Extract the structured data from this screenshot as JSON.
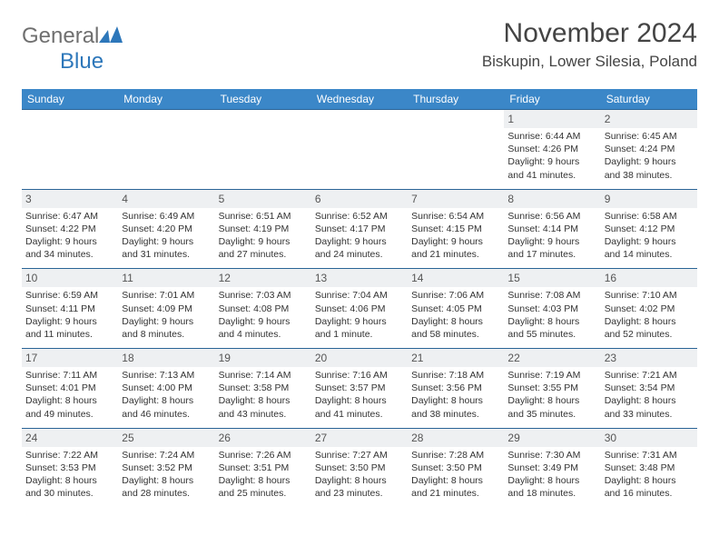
{
  "logo": {
    "word1": "General",
    "word2": "Blue"
  },
  "header": {
    "month_title": "November 2024",
    "location": "Biskupin, Lower Silesia, Poland"
  },
  "colors": {
    "header_bg": "#3b87c8",
    "header_fg": "#ffffff",
    "row_sep": "#2a6496",
    "daynum_bg": "#eef0f2",
    "text": "#333333",
    "logo_gray": "#6f6f6f",
    "logo_blue": "#2d77ba"
  },
  "day_headers": [
    "Sunday",
    "Monday",
    "Tuesday",
    "Wednesday",
    "Thursday",
    "Friday",
    "Saturday"
  ],
  "weeks": [
    [
      null,
      null,
      null,
      null,
      null,
      {
        "n": "1",
        "sunrise": "Sunrise: 6:44 AM",
        "sunset": "Sunset: 4:26 PM",
        "daylight": "Daylight: 9 hours and 41 minutes."
      },
      {
        "n": "2",
        "sunrise": "Sunrise: 6:45 AM",
        "sunset": "Sunset: 4:24 PM",
        "daylight": "Daylight: 9 hours and 38 minutes."
      }
    ],
    [
      {
        "n": "3",
        "sunrise": "Sunrise: 6:47 AM",
        "sunset": "Sunset: 4:22 PM",
        "daylight": "Daylight: 9 hours and 34 minutes."
      },
      {
        "n": "4",
        "sunrise": "Sunrise: 6:49 AM",
        "sunset": "Sunset: 4:20 PM",
        "daylight": "Daylight: 9 hours and 31 minutes."
      },
      {
        "n": "5",
        "sunrise": "Sunrise: 6:51 AM",
        "sunset": "Sunset: 4:19 PM",
        "daylight": "Daylight: 9 hours and 27 minutes."
      },
      {
        "n": "6",
        "sunrise": "Sunrise: 6:52 AM",
        "sunset": "Sunset: 4:17 PM",
        "daylight": "Daylight: 9 hours and 24 minutes."
      },
      {
        "n": "7",
        "sunrise": "Sunrise: 6:54 AM",
        "sunset": "Sunset: 4:15 PM",
        "daylight": "Daylight: 9 hours and 21 minutes."
      },
      {
        "n": "8",
        "sunrise": "Sunrise: 6:56 AM",
        "sunset": "Sunset: 4:14 PM",
        "daylight": "Daylight: 9 hours and 17 minutes."
      },
      {
        "n": "9",
        "sunrise": "Sunrise: 6:58 AM",
        "sunset": "Sunset: 4:12 PM",
        "daylight": "Daylight: 9 hours and 14 minutes."
      }
    ],
    [
      {
        "n": "10",
        "sunrise": "Sunrise: 6:59 AM",
        "sunset": "Sunset: 4:11 PM",
        "daylight": "Daylight: 9 hours and 11 minutes."
      },
      {
        "n": "11",
        "sunrise": "Sunrise: 7:01 AM",
        "sunset": "Sunset: 4:09 PM",
        "daylight": "Daylight: 9 hours and 8 minutes."
      },
      {
        "n": "12",
        "sunrise": "Sunrise: 7:03 AM",
        "sunset": "Sunset: 4:08 PM",
        "daylight": "Daylight: 9 hours and 4 minutes."
      },
      {
        "n": "13",
        "sunrise": "Sunrise: 7:04 AM",
        "sunset": "Sunset: 4:06 PM",
        "daylight": "Daylight: 9 hours and 1 minute."
      },
      {
        "n": "14",
        "sunrise": "Sunrise: 7:06 AM",
        "sunset": "Sunset: 4:05 PM",
        "daylight": "Daylight: 8 hours and 58 minutes."
      },
      {
        "n": "15",
        "sunrise": "Sunrise: 7:08 AM",
        "sunset": "Sunset: 4:03 PM",
        "daylight": "Daylight: 8 hours and 55 minutes."
      },
      {
        "n": "16",
        "sunrise": "Sunrise: 7:10 AM",
        "sunset": "Sunset: 4:02 PM",
        "daylight": "Daylight: 8 hours and 52 minutes."
      }
    ],
    [
      {
        "n": "17",
        "sunrise": "Sunrise: 7:11 AM",
        "sunset": "Sunset: 4:01 PM",
        "daylight": "Daylight: 8 hours and 49 minutes."
      },
      {
        "n": "18",
        "sunrise": "Sunrise: 7:13 AM",
        "sunset": "Sunset: 4:00 PM",
        "daylight": "Daylight: 8 hours and 46 minutes."
      },
      {
        "n": "19",
        "sunrise": "Sunrise: 7:14 AM",
        "sunset": "Sunset: 3:58 PM",
        "daylight": "Daylight: 8 hours and 43 minutes."
      },
      {
        "n": "20",
        "sunrise": "Sunrise: 7:16 AM",
        "sunset": "Sunset: 3:57 PM",
        "daylight": "Daylight: 8 hours and 41 minutes."
      },
      {
        "n": "21",
        "sunrise": "Sunrise: 7:18 AM",
        "sunset": "Sunset: 3:56 PM",
        "daylight": "Daylight: 8 hours and 38 minutes."
      },
      {
        "n": "22",
        "sunrise": "Sunrise: 7:19 AM",
        "sunset": "Sunset: 3:55 PM",
        "daylight": "Daylight: 8 hours and 35 minutes."
      },
      {
        "n": "23",
        "sunrise": "Sunrise: 7:21 AM",
        "sunset": "Sunset: 3:54 PM",
        "daylight": "Daylight: 8 hours and 33 minutes."
      }
    ],
    [
      {
        "n": "24",
        "sunrise": "Sunrise: 7:22 AM",
        "sunset": "Sunset: 3:53 PM",
        "daylight": "Daylight: 8 hours and 30 minutes."
      },
      {
        "n": "25",
        "sunrise": "Sunrise: 7:24 AM",
        "sunset": "Sunset: 3:52 PM",
        "daylight": "Daylight: 8 hours and 28 minutes."
      },
      {
        "n": "26",
        "sunrise": "Sunrise: 7:26 AM",
        "sunset": "Sunset: 3:51 PM",
        "daylight": "Daylight: 8 hours and 25 minutes."
      },
      {
        "n": "27",
        "sunrise": "Sunrise: 7:27 AM",
        "sunset": "Sunset: 3:50 PM",
        "daylight": "Daylight: 8 hours and 23 minutes."
      },
      {
        "n": "28",
        "sunrise": "Sunrise: 7:28 AM",
        "sunset": "Sunset: 3:50 PM",
        "daylight": "Daylight: 8 hours and 21 minutes."
      },
      {
        "n": "29",
        "sunrise": "Sunrise: 7:30 AM",
        "sunset": "Sunset: 3:49 PM",
        "daylight": "Daylight: 8 hours and 18 minutes."
      },
      {
        "n": "30",
        "sunrise": "Sunrise: 7:31 AM",
        "sunset": "Sunset: 3:48 PM",
        "daylight": "Daylight: 8 hours and 16 minutes."
      }
    ]
  ]
}
